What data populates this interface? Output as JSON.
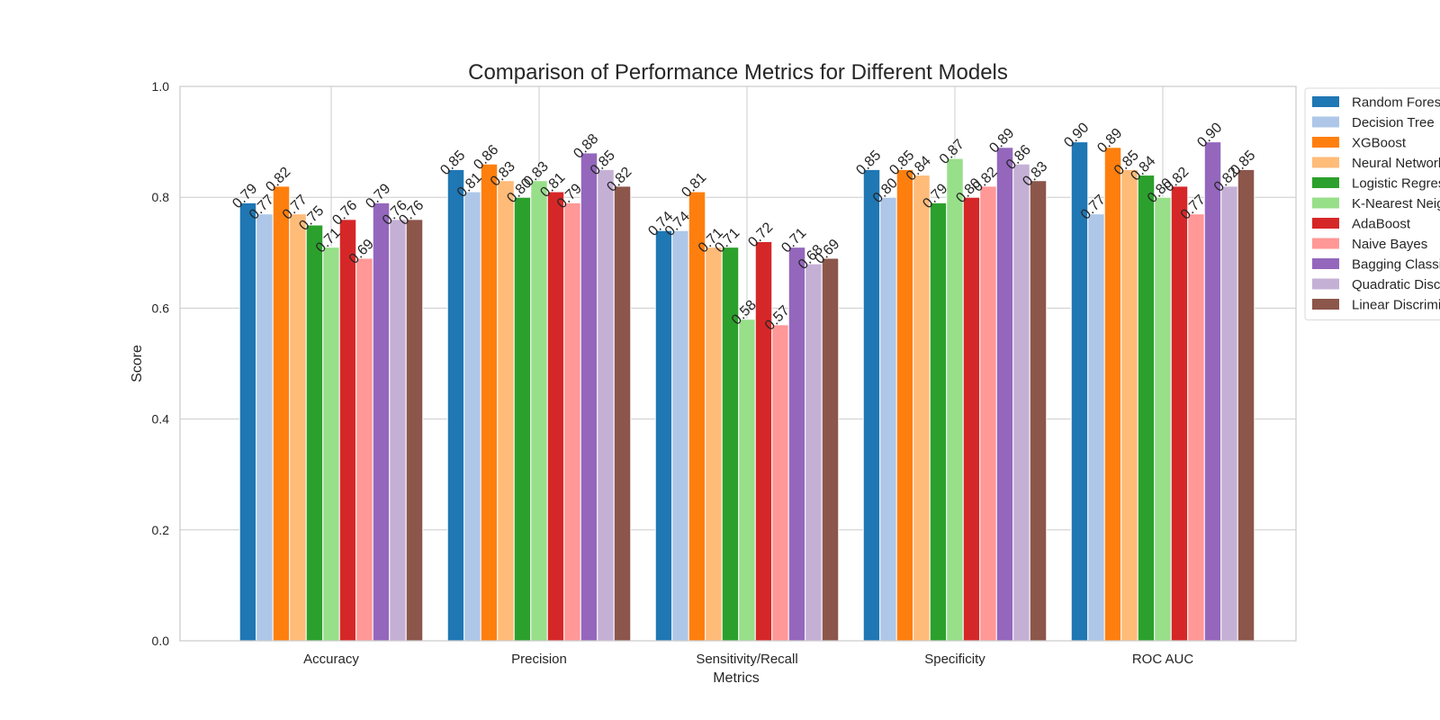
{
  "chart_data": {
    "type": "bar",
    "title": "Comparison of Performance Metrics for Different Models",
    "xlabel": "Metrics",
    "ylabel": "Score",
    "ylim": [
      0,
      1.0
    ],
    "yticks": [
      "0.0",
      "0.2",
      "0.4",
      "0.6",
      "0.8",
      "1.0"
    ],
    "grid": true,
    "legend_position": "outside-right",
    "categories": [
      "Accuracy",
      "Precision",
      "Sensitivity/Recall",
      "Specificity",
      "ROC AUC"
    ],
    "series": [
      {
        "name": "Random Forest",
        "color": "#1f77b4",
        "values": [
          0.79,
          0.85,
          0.74,
          0.85,
          0.9
        ],
        "labels": [
          "0.79",
          "0.85",
          "0.74",
          "0.85",
          "0.90"
        ]
      },
      {
        "name": "Decision Tree",
        "color": "#aec7e8",
        "values": [
          0.77,
          0.81,
          0.74,
          0.8,
          0.77
        ],
        "labels": [
          "0.77",
          "0.81",
          "0.74",
          "0.80",
          "0.77"
        ]
      },
      {
        "name": "XGBoost",
        "color": "#ff7f0e",
        "values": [
          0.82,
          0.86,
          0.81,
          0.85,
          0.89
        ],
        "labels": [
          "0.82",
          "0.86",
          "0.81",
          "0.85",
          "0.89"
        ]
      },
      {
        "name": "Neural Network",
        "color": "#ffbb78",
        "values": [
          0.77,
          0.83,
          0.71,
          0.84,
          0.85
        ],
        "labels": [
          "0.77",
          "0.83",
          "0.71",
          "0.84",
          "0.85"
        ]
      },
      {
        "name": "Logistic Regression",
        "color": "#2ca02c",
        "values": [
          0.75,
          0.8,
          0.71,
          0.79,
          0.84
        ],
        "labels": [
          "0.75",
          "0.80",
          "0.71",
          "0.79",
          "0.84"
        ]
      },
      {
        "name": "K-Nearest Neighbors",
        "color": "#98df8a",
        "values": [
          0.71,
          0.83,
          0.58,
          0.87,
          0.8
        ],
        "labels": [
          "0.71",
          "0.83",
          "0.58",
          "0.87",
          "0.80"
        ]
      },
      {
        "name": "AdaBoost",
        "color": "#d62728",
        "values": [
          0.76,
          0.81,
          0.72,
          0.8,
          0.82
        ],
        "labels": [
          "0.76",
          "0.81",
          "0.72",
          "0.80",
          "0.82"
        ]
      },
      {
        "name": "Naive Bayes",
        "color": "#ff9896",
        "values": [
          0.69,
          0.79,
          0.57,
          0.82,
          0.77
        ],
        "labels": [
          "0.69",
          "0.79",
          "0.57",
          "0.82",
          "0.77"
        ]
      },
      {
        "name": "Bagging Classifier",
        "color": "#9467bd",
        "values": [
          0.79,
          0.88,
          0.71,
          0.89,
          0.9
        ],
        "labels": [
          "0.79",
          "0.88",
          "0.71",
          "0.89",
          "0.90"
        ]
      },
      {
        "name": "Quadratic Discriminant Analysis",
        "color": "#c5b0d5",
        "values": [
          0.76,
          0.85,
          0.68,
          0.86,
          0.82
        ],
        "labels": [
          "0.76",
          "0.85",
          "0.68",
          "0.86",
          "0.82"
        ]
      },
      {
        "name": "Linear Discriminant Analysis",
        "color": "#8c564b",
        "values": [
          0.76,
          0.82,
          0.69,
          0.83,
          0.85
        ],
        "labels": [
          "0.76",
          "0.82",
          "0.69",
          "0.83",
          "0.85"
        ]
      }
    ]
  }
}
